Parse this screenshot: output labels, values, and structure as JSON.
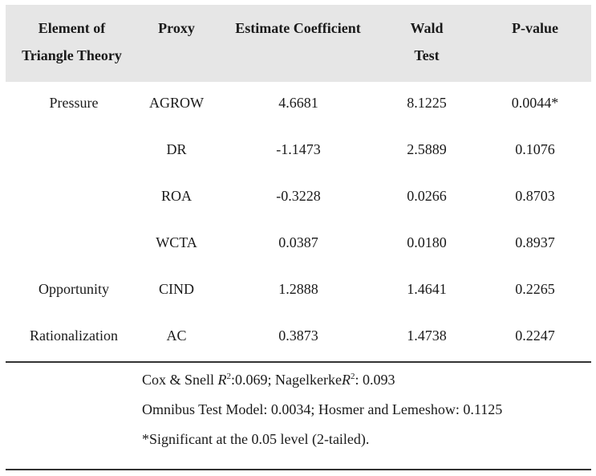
{
  "table": {
    "headers": {
      "element_line1": "Element of",
      "element_line2": "Triangle Theory",
      "proxy": "Proxy",
      "estimate": "Estimate Coefficient",
      "wald_line1": "Wald",
      "wald_line2": "Test",
      "pvalue": "P-value"
    },
    "rows": [
      {
        "element": "Pressure",
        "proxy": "AGROW",
        "estimate": "4.6681",
        "wald": "8.1225",
        "pvalue": "0.0044*"
      },
      {
        "element": "",
        "proxy": "DR",
        "estimate": "-1.1473",
        "wald": "2.5889",
        "pvalue": "0.1076"
      },
      {
        "element": "",
        "proxy": "ROA",
        "estimate": "-0.3228",
        "wald": "0.0266",
        "pvalue": "0.8703"
      },
      {
        "element": "",
        "proxy": "WCTA",
        "estimate": "0.0387",
        "wald": "0.0180",
        "pvalue": "0.8937"
      },
      {
        "element": "Opportunity",
        "proxy": "CIND",
        "estimate": "1.2888",
        "wald": "1.4641",
        "pvalue": "0.2265"
      },
      {
        "element": "Rationalization",
        "proxy": "AC",
        "estimate": "0.3873",
        "wald": "1.4738",
        "pvalue": "0.2247"
      }
    ],
    "notes": {
      "cox_prefix": "Cox & Snell ",
      "r_symbol": "R",
      "r_exp": "2",
      "cox_value": ":0.069; Nagelkerke",
      "nagel_value": ":  0.093",
      "omnibus": "Omnibus Test Model: 0.0034; Hosmer and Lemeshow: 0.1125",
      "significance": "*Significant at the 0.05 level (2-tailed)."
    }
  }
}
